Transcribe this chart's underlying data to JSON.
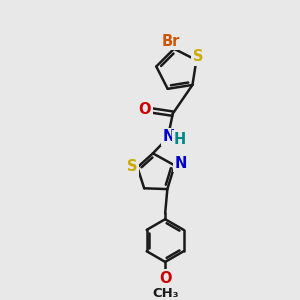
{
  "background_color": "#e8e8e8",
  "bond_color": "#1a1a1a",
  "bond_width": 1.8,
  "atom_colors": {
    "Br": "#cc5500",
    "S": "#ccaa00",
    "O": "#cc0000",
    "N": "#0000cc",
    "H": "#008888",
    "C": "#1a1a1a"
  },
  "fs": 10.5,
  "fs_small": 9.5
}
